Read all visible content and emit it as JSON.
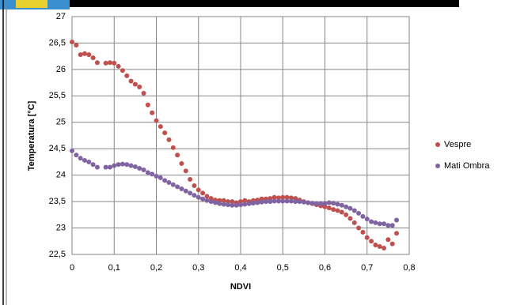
{
  "chart_data": {
    "type": "scatter",
    "x_label": "NDVI",
    "y_label": "Temperatura [°C]",
    "xlim": [
      0,
      0.8
    ],
    "ylim": [
      22.5,
      27
    ],
    "xticks": [
      0,
      {
        "value": 0.1,
        "label": "0,1"
      },
      {
        "value": 0.2,
        "label": "0,2"
      },
      {
        "value": 0.3,
        "label": "0,3"
      },
      {
        "value": 0.4,
        "label": "0,4"
      },
      {
        "value": 0.5,
        "label": "0,5"
      },
      {
        "value": 0.6,
        "label": "0,6"
      },
      {
        "value": 0.7,
        "label": "0,7"
      },
      {
        "value": 0.8,
        "label": "0,8"
      }
    ],
    "yticks": [
      {
        "value": 22.5,
        "label": "22,5"
      },
      23,
      {
        "value": 23.5,
        "label": "23,5"
      },
      24,
      {
        "value": 24.5,
        "label": "24,5"
      },
      25,
      {
        "value": 25.5,
        "label": "25,5"
      },
      26,
      {
        "value": 26.5,
        "label": "26,5"
      },
      27
    ],
    "grid": true,
    "legend": "right",
    "x": [
      0,
      0.01,
      0.02,
      0.03,
      0.04,
      0.05,
      0.06,
      0.08,
      0.09,
      0.1,
      0.11,
      0.12,
      0.13,
      0.14,
      0.15,
      0.16,
      0.17,
      0.18,
      0.19,
      0.2,
      0.21,
      0.22,
      0.23,
      0.24,
      0.25,
      0.26,
      0.27,
      0.28,
      0.29,
      0.3,
      0.31,
      0.32,
      0.33,
      0.34,
      0.35,
      0.36,
      0.37,
      0.38,
      0.39,
      0.4,
      0.41,
      0.42,
      0.43,
      0.44,
      0.45,
      0.46,
      0.47,
      0.48,
      0.49,
      0.5,
      0.51,
      0.52,
      0.53,
      0.54,
      0.55,
      0.56,
      0.57,
      0.58,
      0.59,
      0.6,
      0.61,
      0.62,
      0.63,
      0.64,
      0.65,
      0.66,
      0.67,
      0.68,
      0.69,
      0.7,
      0.71,
      0.72,
      0.73,
      0.74,
      0.75,
      0.76,
      0.77
    ],
    "series": [
      {
        "name": "Vespre",
        "color": "#c0504d",
        "values": [
          26.52,
          26.46,
          26.28,
          26.3,
          26.28,
          26.22,
          26.13,
          26.12,
          26.13,
          26.12,
          26.06,
          25.98,
          25.88,
          25.78,
          25.72,
          25.67,
          25.55,
          25.33,
          25.18,
          25.03,
          24.92,
          24.8,
          24.67,
          24.52,
          24.38,
          24.22,
          24.08,
          23.92,
          23.8,
          23.72,
          23.66,
          23.6,
          23.56,
          23.53,
          23.52,
          23.52,
          23.5,
          23.5,
          23.48,
          23.5,
          23.52,
          23.5,
          23.52,
          23.53,
          23.55,
          23.55,
          23.56,
          23.58,
          23.57,
          23.58,
          23.58,
          23.57,
          23.56,
          23.53,
          23.5,
          23.48,
          23.46,
          23.44,
          23.42,
          23.4,
          23.38,
          23.35,
          23.33,
          23.3,
          23.25,
          23.18,
          23.1,
          23.0,
          22.92,
          22.82,
          22.75,
          22.68,
          22.65,
          22.62,
          22.78,
          22.7,
          22.9
        ]
      },
      {
        "name": "Mati Ombra",
        "color": "#8064a2",
        "values": [
          24.46,
          24.38,
          24.32,
          24.28,
          24.25,
          24.2,
          24.15,
          24.15,
          24.15,
          24.18,
          24.2,
          24.21,
          24.2,
          24.18,
          24.16,
          24.13,
          24.1,
          24.05,
          24.02,
          23.98,
          23.95,
          23.9,
          23.86,
          23.82,
          23.78,
          23.74,
          23.7,
          23.66,
          23.62,
          23.58,
          23.55,
          23.52,
          23.5,
          23.48,
          23.46,
          23.45,
          23.44,
          23.43,
          23.43,
          23.44,
          23.45,
          23.46,
          23.47,
          23.48,
          23.49,
          23.5,
          23.5,
          23.51,
          23.51,
          23.51,
          23.51,
          23.51,
          23.5,
          23.5,
          23.49,
          23.48,
          23.47,
          23.46,
          23.46,
          23.46,
          23.48,
          23.47,
          23.45,
          23.43,
          23.4,
          23.37,
          23.33,
          23.28,
          23.22,
          23.17,
          23.12,
          23.1,
          23.08,
          23.08,
          23.05,
          23.05,
          23.15
        ]
      }
    ]
  }
}
